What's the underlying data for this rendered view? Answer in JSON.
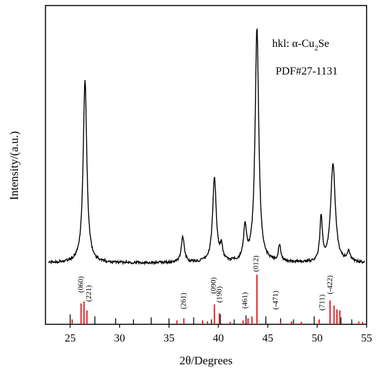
{
  "chart_data": {
    "type": "line",
    "xlabel": "2θ/Degrees",
    "ylabel": "Intensity/(a.u.)",
    "xlim": [
      22.5,
      55
    ],
    "x_ticks": [
      "25",
      "30",
      "35",
      "40",
      "45",
      "50",
      "55"
    ],
    "x_tick_values": [
      25,
      30,
      35,
      40,
      45,
      50,
      55
    ],
    "legend": {
      "prefix": "hkl: α-Cu",
      "subscript": "2",
      "suffix": "Se",
      "pdf": "PDF#27-1131"
    },
    "pattern_peaks": [
      {
        "two_theta": 26.5,
        "intensity": 0.78,
        "width": 0.22
      },
      {
        "two_theta": 36.4,
        "intensity": 0.11,
        "width": 0.18
      },
      {
        "two_theta": 39.6,
        "intensity": 0.36,
        "width": 0.22
      },
      {
        "two_theta": 40.3,
        "intensity": 0.06,
        "width": 0.15
      },
      {
        "two_theta": 42.7,
        "intensity": 0.14,
        "width": 0.18
      },
      {
        "two_theta": 43.9,
        "intensity": 1.0,
        "width": 0.22
      },
      {
        "two_theta": 46.2,
        "intensity": 0.07,
        "width": 0.15
      },
      {
        "two_theta": 50.4,
        "intensity": 0.19,
        "width": 0.15
      },
      {
        "two_theta": 51.6,
        "intensity": 0.42,
        "width": 0.28
      },
      {
        "two_theta": 53.2,
        "intensity": 0.04,
        "width": 0.2
      }
    ],
    "reference_lines_red": [
      {
        "two_theta": 25.2,
        "intensity": 0.1
      },
      {
        "two_theta": 26.1,
        "intensity": 0.42
      },
      {
        "two_theta": 26.4,
        "intensity": 0.46
      },
      {
        "two_theta": 26.7,
        "intensity": 0.28
      },
      {
        "two_theta": 35.8,
        "intensity": 0.08
      },
      {
        "two_theta": 36.5,
        "intensity": 0.12
      },
      {
        "two_theta": 38.4,
        "intensity": 0.08
      },
      {
        "two_theta": 38.9,
        "intensity": 0.06
      },
      {
        "two_theta": 39.6,
        "intensity": 0.4
      },
      {
        "two_theta": 40.1,
        "intensity": 0.22
      },
      {
        "two_theta": 41.2,
        "intensity": 0.05
      },
      {
        "two_theta": 42.5,
        "intensity": 0.08
      },
      {
        "two_theta": 43.0,
        "intensity": 0.12
      },
      {
        "two_theta": 43.4,
        "intensity": 0.16
      },
      {
        "two_theta": 43.9,
        "intensity": 1.0
      },
      {
        "two_theta": 46.3,
        "intensity": 0.05
      },
      {
        "two_theta": 47.4,
        "intensity": 0.06
      },
      {
        "two_theta": 48.4,
        "intensity": 0.05
      },
      {
        "two_theta": 50.2,
        "intensity": 0.1
      },
      {
        "two_theta": 51.3,
        "intensity": 0.48
      },
      {
        "two_theta": 51.7,
        "intensity": 0.38
      },
      {
        "two_theta": 52.0,
        "intensity": 0.3
      },
      {
        "two_theta": 52.3,
        "intensity": 0.28
      },
      {
        "two_theta": 54.2,
        "intensity": 0.06
      },
      {
        "two_theta": 54.6,
        "intensity": 0.05
      }
    ],
    "reference_lines_black": [
      {
        "two_theta": 25.0,
        "intensity": 0.2
      },
      {
        "two_theta": 27.5,
        "intensity": 0.16
      },
      {
        "two_theta": 29.6,
        "intensity": 0.12
      },
      {
        "two_theta": 31.4,
        "intensity": 0.1
      },
      {
        "two_theta": 33.2,
        "intensity": 0.14
      },
      {
        "two_theta": 35.0,
        "intensity": 0.12
      },
      {
        "two_theta": 37.5,
        "intensity": 0.14
      },
      {
        "two_theta": 39.3,
        "intensity": 0.1
      },
      {
        "two_theta": 40.2,
        "intensity": 0.2
      },
      {
        "two_theta": 41.6,
        "intensity": 0.1
      },
      {
        "two_theta": 42.8,
        "intensity": 0.18
      },
      {
        "two_theta": 44.8,
        "intensity": 0.16
      },
      {
        "two_theta": 46.3,
        "intensity": 0.12
      },
      {
        "two_theta": 47.6,
        "intensity": 0.1
      },
      {
        "two_theta": 49.7,
        "intensity": 0.16
      },
      {
        "two_theta": 52.4,
        "intensity": 0.14
      },
      {
        "two_theta": 53.5,
        "intensity": 0.1
      }
    ],
    "hkl_labels": [
      {
        "text": "(060)",
        "two_theta": 26.1,
        "height": 0.58
      },
      {
        "text": "(221)",
        "two_theta": 26.9,
        "height": 0.4
      },
      {
        "text": "(261)",
        "two_theta": 36.5,
        "height": 0.25
      },
      {
        "text": "(090)",
        "two_theta": 39.5,
        "height": 0.56
      },
      {
        "text": "(190)",
        "two_theta": 40.1,
        "height": 0.38
      },
      {
        "text": "(461)",
        "two_theta": 42.7,
        "height": 0.26
      },
      {
        "text": "(012)",
        "two_theta": 43.8,
        "height": 1.0
      },
      {
        "text": "(-471)",
        "two_theta": 45.8,
        "height": 0.24
      },
      {
        "text": "(711)",
        "two_theta": 50.5,
        "height": 0.22
      },
      {
        "text": "(-422)",
        "two_theta": 51.3,
        "height": 0.55
      }
    ]
  }
}
